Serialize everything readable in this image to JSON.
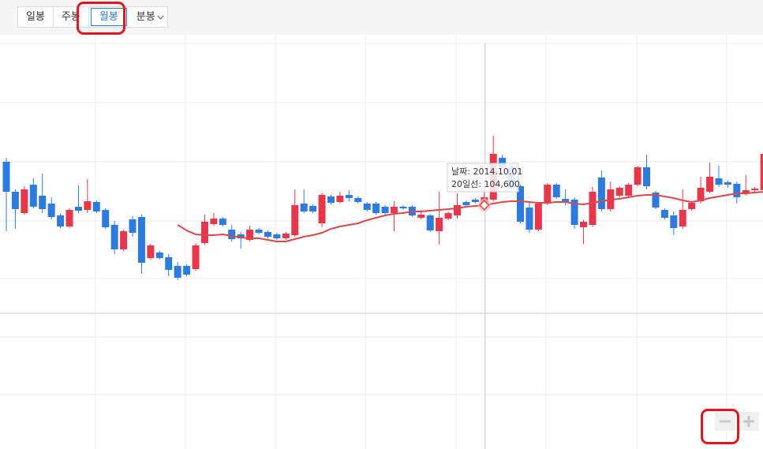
{
  "tabs": [
    "일봉",
    "주봉",
    "월봉",
    "분봉"
  ],
  "chart_data": {
    "type": "candlestick",
    "up_color": "#e8374a",
    "down_color": "#2c7be0",
    "ylim": [
      43600,
      145600
    ],
    "open": [
      115600,
      108000,
      102600,
      109800,
      107000,
      105000,
      102000,
      99200,
      104200,
      103400,
      105400,
      103400,
      99600,
      93400,
      101000,
      101600,
      91200,
      92600,
      91400,
      89200,
      89200,
      88400,
      95000,
      99800,
      101200,
      98400,
      97200,
      95800,
      98400,
      97800,
      97200,
      96200,
      97000,
      105000,
      104400,
      100000,
      106800,
      105400,
      107200,
      106400,
      105000,
      105000,
      104200,
      102600,
      104200,
      104200,
      101400,
      102000,
      98000,
      101200,
      102000,
      105400,
      106000,
      104200,
      106000,
      116600,
      114200,
      109400,
      104000,
      98400,
      105000,
      109800,
      106200,
      106000,
      99000,
      99600,
      111600,
      103600,
      107000,
      107000,
      109800,
      114200,
      107800,
      103400,
      102000,
      99200,
      103600,
      105600,
      108000,
      111400,
      110400,
      110000,
      107800,
      108400,
      108400
    ],
    "high": [
      116600,
      108600,
      109400,
      111400,
      112600,
      106600,
      102400,
      103800,
      109600,
      111200,
      105800,
      103800,
      100600,
      98400,
      101800,
      102200,
      94800,
      93000,
      92200,
      90200,
      89600,
      95000,
      102200,
      102600,
      101600,
      99600,
      97800,
      99400,
      98800,
      98200,
      97600,
      97800,
      108600,
      108600,
      104800,
      107800,
      107200,
      108000,
      108400,
      106800,
      105400,
      105400,
      104600,
      105600,
      104600,
      104600,
      103400,
      102400,
      108000,
      103000,
      107600,
      105800,
      106400,
      111000,
      122200,
      117400,
      114600,
      109800,
      105600,
      105400,
      110200,
      110200,
      108600,
      106600,
      100800,
      109200,
      113400,
      110600,
      109400,
      110200,
      114600,
      117400,
      108200,
      103800,
      103000,
      108600,
      105600,
      111800,
      115400,
      114600,
      110800,
      110600,
      112200,
      109200,
      121000
    ],
    "low": [
      98000,
      98600,
      102200,
      103800,
      102600,
      101000,
      98800,
      98800,
      102600,
      102600,
      102600,
      98600,
      92200,
      93000,
      96600,
      87200,
      90800,
      90800,
      86600,
      85600,
      86600,
      88000,
      94600,
      99400,
      99200,
      95400,
      93600,
      95400,
      97200,
      96200,
      95800,
      95800,
      96600,
      102600,
      102600,
      99000,
      104800,
      105000,
      105600,
      105000,
      103000,
      102200,
      102200,
      98000,
      103400,
      101600,
      101000,
      97800,
      94600,
      100800,
      101200,
      104200,
      105000,
      103800,
      105600,
      113800,
      108600,
      100000,
      97600,
      98000,
      104600,
      106200,
      104600,
      98600,
      94800,
      99200,
      103000,
      103000,
      106600,
      106600,
      109400,
      108600,
      103600,
      101000,
      97000,
      98600,
      103200,
      105000,
      107600,
      109200,
      109000,
      105000,
      107000,
      108000,
      107600
    ],
    "close": [
      108000,
      103600,
      108600,
      104200,
      103600,
      101600,
      99200,
      103400,
      103200,
      105600,
      103000,
      99000,
      93400,
      98000,
      97600,
      90000,
      94400,
      91200,
      88200,
      86200,
      87000,
      94400,
      100400,
      101200,
      99600,
      96000,
      96200,
      98400,
      97600,
      96600,
      96200,
      97400,
      104600,
      103000,
      103000,
      107200,
      105200,
      107000,
      106400,
      105400,
      103400,
      102600,
      102600,
      104200,
      103800,
      102000,
      102200,
      98200,
      101400,
      102600,
      104600,
      104600,
      105400,
      106600,
      117600,
      114200,
      109000,
      100400,
      98400,
      105000,
      109800,
      106600,
      105200,
      99600,
      100400,
      108000,
      103600,
      108600,
      109000,
      109800,
      114200,
      109400,
      104000,
      101400,
      98800,
      103400,
      105200,
      109000,
      111800,
      109800,
      109800,
      106600,
      108400,
      108800,
      117600
    ],
    "ma20": {
      "color": "#e0454a",
      "values": [
        null,
        null,
        null,
        null,
        null,
        null,
        null,
        null,
        null,
        null,
        null,
        null,
        null,
        null,
        null,
        null,
        null,
        null,
        null,
        99600,
        98200,
        97200,
        97000,
        97000,
        97200,
        96800,
        96400,
        96200,
        96200,
        95800,
        95400,
        95400,
        96000,
        96600,
        97000,
        97600,
        98600,
        99200,
        99600,
        100000,
        100800,
        101400,
        102000,
        102400,
        102600,
        103000,
        103000,
        103200,
        103400,
        103600,
        103800,
        104200,
        104400,
        104600,
        105000,
        105400,
        105600,
        105600,
        105400,
        105200,
        105200,
        105400,
        105400,
        105000,
        104800,
        105200,
        105600,
        106000,
        106200,
        106600,
        107000,
        107200,
        107200,
        106800,
        106400,
        105800,
        105400,
        105800,
        106400,
        106800,
        107200,
        107600,
        107600,
        107800,
        108000
      ]
    },
    "tooltip_index": 53,
    "annotations": [
      "날짜: 2014.10.01",
      "20일선: 104,600"
    ]
  }
}
